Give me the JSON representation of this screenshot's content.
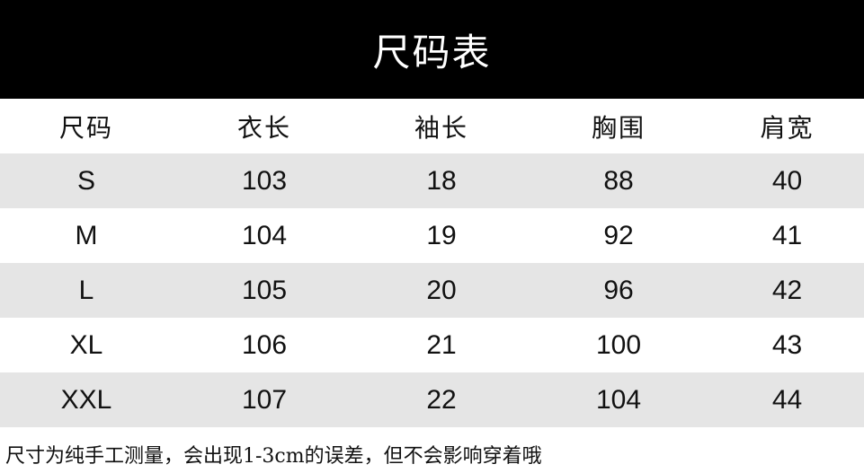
{
  "title": "尺码表",
  "headers": [
    "尺码",
    "衣长",
    "袖长",
    "胸围",
    "肩宽"
  ],
  "rows": [
    [
      "S",
      "103",
      "18",
      "88",
      "40"
    ],
    [
      "M",
      "104",
      "19",
      "92",
      "41"
    ],
    [
      "L",
      "105",
      "20",
      "96",
      "42"
    ],
    [
      "XL",
      "106",
      "21",
      "100",
      "43"
    ],
    [
      "XXL",
      "107",
      "22",
      "104",
      "44"
    ]
  ],
  "note": "尺寸为纯手工测量，会出现1-3cm的误差，但不会影响穿着哦",
  "colors": {
    "header_bg": "#000000",
    "stripe": "#e5e5e5"
  }
}
